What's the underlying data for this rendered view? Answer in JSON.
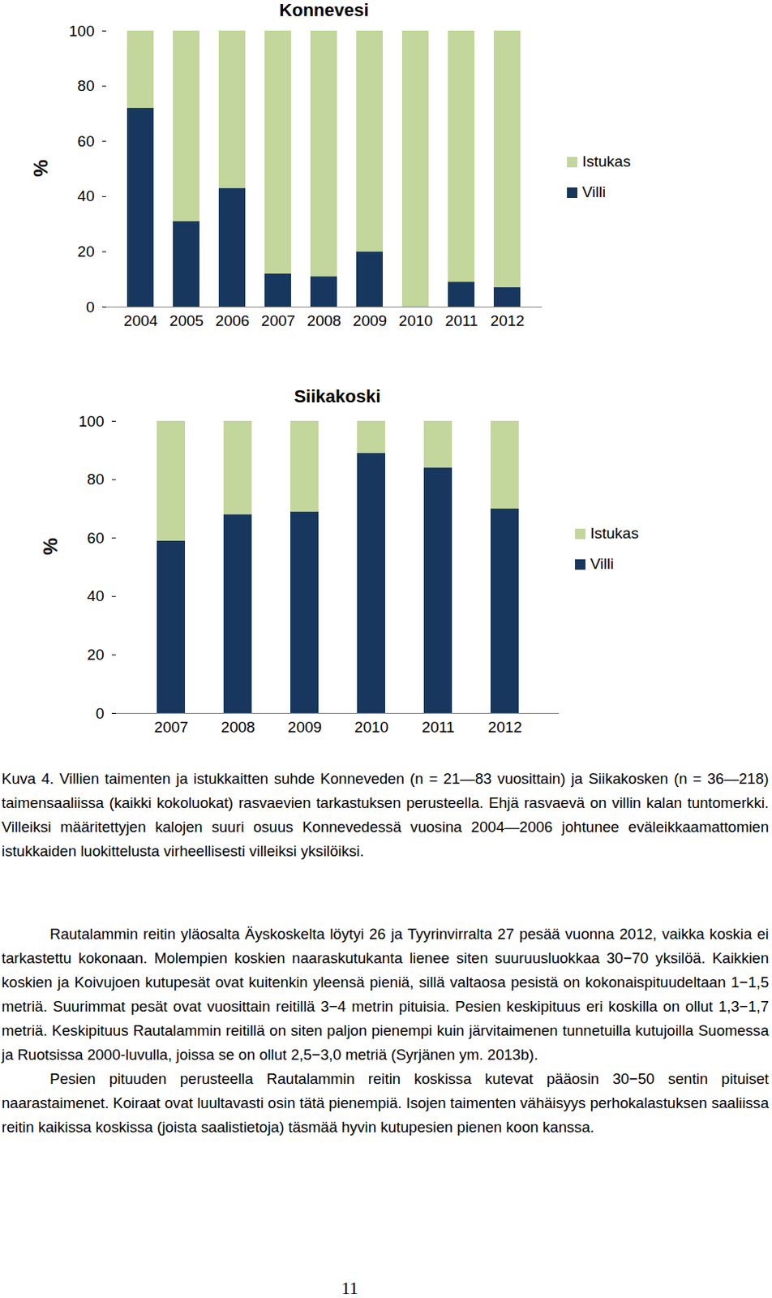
{
  "chart_data": [
    {
      "type": "bar",
      "title": "Konnevesi",
      "stacked": true,
      "legend": "right",
      "y_label": "%",
      "categories": [
        "2004",
        "2005",
        "2006",
        "2007",
        "2008",
        "2009",
        "2010",
        "2011",
        "2012"
      ],
      "series": [
        {
          "name": "Villi",
          "color": "#17375e",
          "values": [
            72,
            31,
            43,
            12,
            11,
            20,
            0,
            9,
            7
          ]
        },
        {
          "name": "Istukas",
          "color": "#c3d69b",
          "values": [
            28,
            69,
            57,
            88,
            89,
            80,
            100,
            91,
            93
          ]
        }
      ],
      "ylim": [
        0,
        100
      ],
      "yticks": [
        0,
        20,
        40,
        60,
        80,
        100
      ],
      "grid": false
    },
    {
      "type": "bar",
      "title": "Siikakoski",
      "stacked": true,
      "legend": "right",
      "y_label": "%",
      "categories": [
        "2007",
        "2008",
        "2009",
        "2010",
        "2011",
        "2012"
      ],
      "series": [
        {
          "name": "Villi",
          "color": "#17375e",
          "values": [
            59,
            68,
            69,
            89,
            84,
            70
          ]
        },
        {
          "name": "Istukas",
          "color": "#c3d69b",
          "values": [
            41,
            32,
            31,
            11,
            16,
            30
          ]
        }
      ],
      "ylim": [
        0,
        100
      ],
      "yticks": [
        0,
        20,
        40,
        60,
        80,
        100
      ],
      "grid": false
    }
  ],
  "caption": "Kuva 4. Villien taimenten ja istukkaitten suhde Konneveden (n = 21—83 vuosittain) ja Siikakosken (n = 36—218) taimensaaliissa (kaikki kokoluokat) rasvaevien tarkastuksen perusteella. Ehjä rasvaevä on villin kalan tuntomerkki. Villeiksi määritettyjen kalojen suuri osuus Konnevedessä vuosina 2004—2006 johtunee eväleikkaamattomien istukkaiden luokittelusta virheellisesti villeiksi yksilöiksi.",
  "paragraphs": [
    "Rautalammin reitin yläosalta Äyskoskelta löytyi 26 ja Tyyrinvirralta 27 pesää vuonna 2012, vaikka koskia ei tarkastettu kokonaan. Molempien koskien naaraskutukanta lienee siten suuruusluokkaa 30−70 yksilöä. Kaikkien koskien ja Koivujoen kutupesät ovat kuitenkin yleensä pieniä, sillä valtaosa pesistä on kokonaispituudeltaan 1−1,5 metriä. Suurimmat pesät ovat vuosittain reitillä 3−4 metrin pituisia. Pesien keskipituus eri koskilla on ollut 1,3−1,7 metriä. Keskipituus Rautalammin reitillä on siten paljon pienempi kuin järvitaimenen tunnetuilla kutujoilla Suomessa ja Ruotsissa 2000-luvulla, joissa se on ollut 2,5−3,0 metriä (Syrjänen ym. 2013b).",
    "Pesien pituuden perusteella Rautalammin reitin koskissa kutevat pääosin 30−50 sentin pituiset naarastaimenet. Koiraat ovat luultavasti osin tätä pienempiä. Isojen taimenten vähäisyys perhokalastuksen saaliissa reitin kaikissa koskissa (joista saalistietoja) täsmää hyvin kutupesien pienen koon kanssa."
  ],
  "page_number": "11"
}
